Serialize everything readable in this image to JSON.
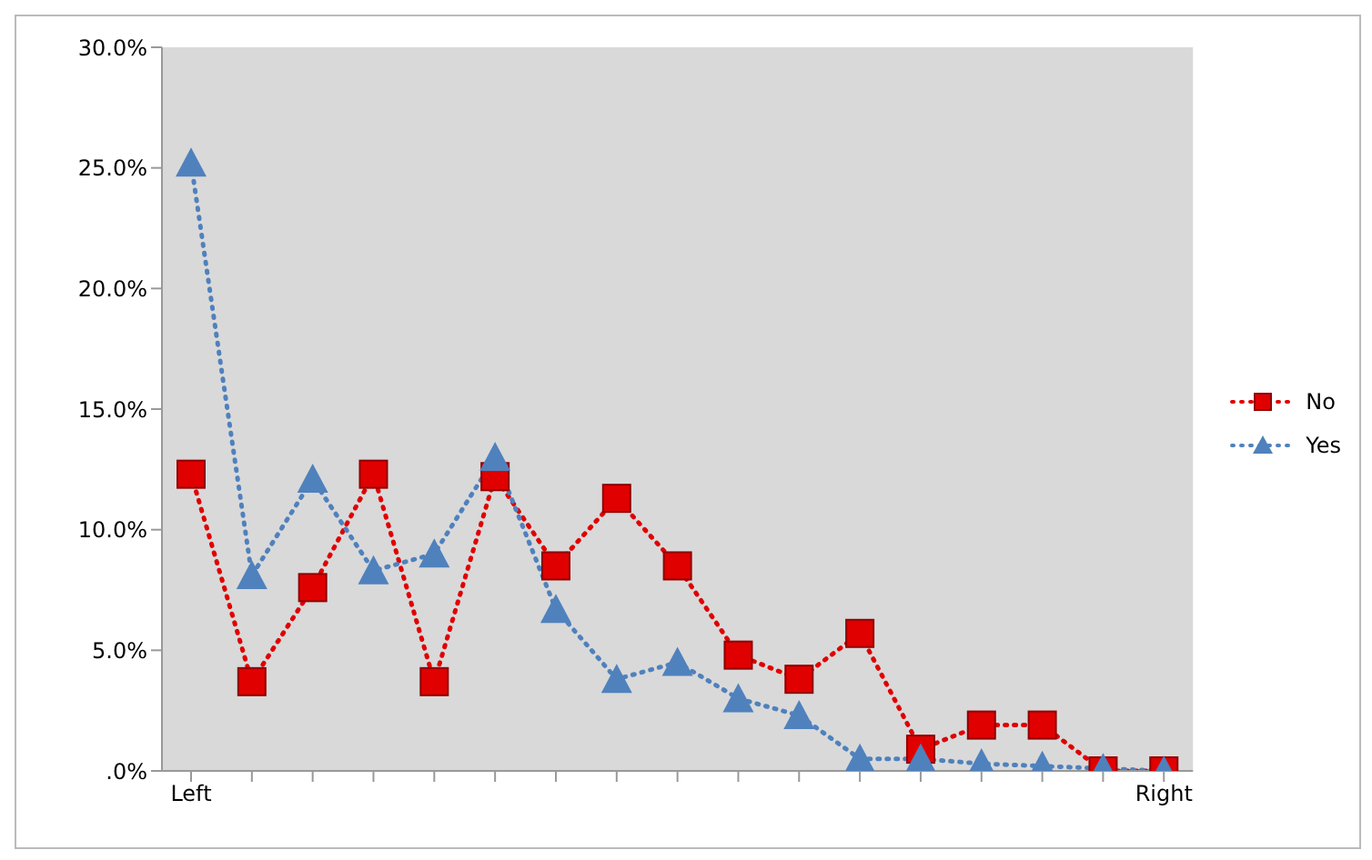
{
  "chart_data": {
    "type": "line",
    "categories": [
      "Left",
      null,
      null,
      null,
      null,
      null,
      null,
      null,
      null,
      null,
      null,
      null,
      null,
      null,
      null,
      null,
      "Right"
    ],
    "series": [
      {
        "name": "No",
        "color": "#e00000",
        "marker": "square",
        "values": [
          12.3,
          3.7,
          7.6,
          12.3,
          3.7,
          12.2,
          8.5,
          11.3,
          8.5,
          4.8,
          3.8,
          5.7,
          0.9,
          1.9,
          1.9,
          0.0,
          0.0
        ]
      },
      {
        "name": "Yes",
        "color": "#4f81bd",
        "marker": "triangle",
        "values": [
          25.2,
          8.1,
          12.1,
          8.3,
          9.0,
          13.0,
          6.7,
          3.8,
          4.5,
          3.0,
          2.3,
          0.5,
          0.5,
          0.3,
          0.2,
          0.1,
          0.0
        ]
      }
    ],
    "ylim": [
      0,
      30
    ],
    "yticks": [
      {
        "value": 0,
        "label": ".0%"
      },
      {
        "value": 5,
        "label": "5.0%"
      },
      {
        "value": 10,
        "label": "10.0%"
      },
      {
        "value": 15,
        "label": "15.0%"
      },
      {
        "value": 20,
        "label": "20.0%"
      },
      {
        "value": 25,
        "label": "25.0%"
      },
      {
        "value": 30,
        "label": "30.0%"
      }
    ],
    "line_style": "dotted",
    "legend": "right"
  }
}
